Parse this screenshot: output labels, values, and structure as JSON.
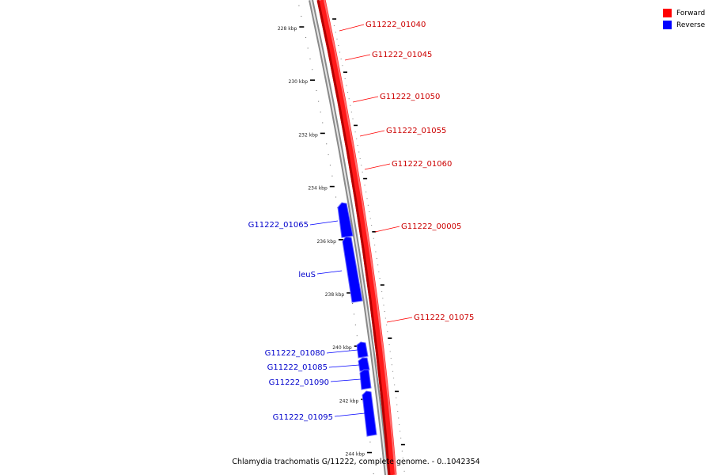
{
  "legend": {
    "forward": {
      "label": "Forward",
      "color": "#ff0000"
    },
    "reverse": {
      "label": "Reverse",
      "color": "#0000ff"
    }
  },
  "caption": "Chlamydia trachomatis G/11222, complete genome. - 0..1042354",
  "axis_labels": [
    "228 kbp",
    "230 kbp",
    "232 kbp",
    "234 kbp",
    "236 kbp",
    "238 kbp",
    "240 kbp",
    "242 kbp",
    "244 kbp"
  ],
  "forward_genes": [
    "G11222_01040",
    "G11222_01045",
    "G11222_01050",
    "G11222_01055",
    "G11222_01060",
    "G11222_00005",
    "G11222_01075"
  ],
  "reverse_genes": [
    "G11222_01065",
    "leuS",
    "G11222_01080",
    "G11222_01085",
    "G11222_01090",
    "G11222_01095"
  ],
  "colors": {
    "forward_strand": "#ff0000",
    "forward_strand_dark": "#b00000",
    "reverse_feature": "#0000ff",
    "backbone": "#808080"
  }
}
